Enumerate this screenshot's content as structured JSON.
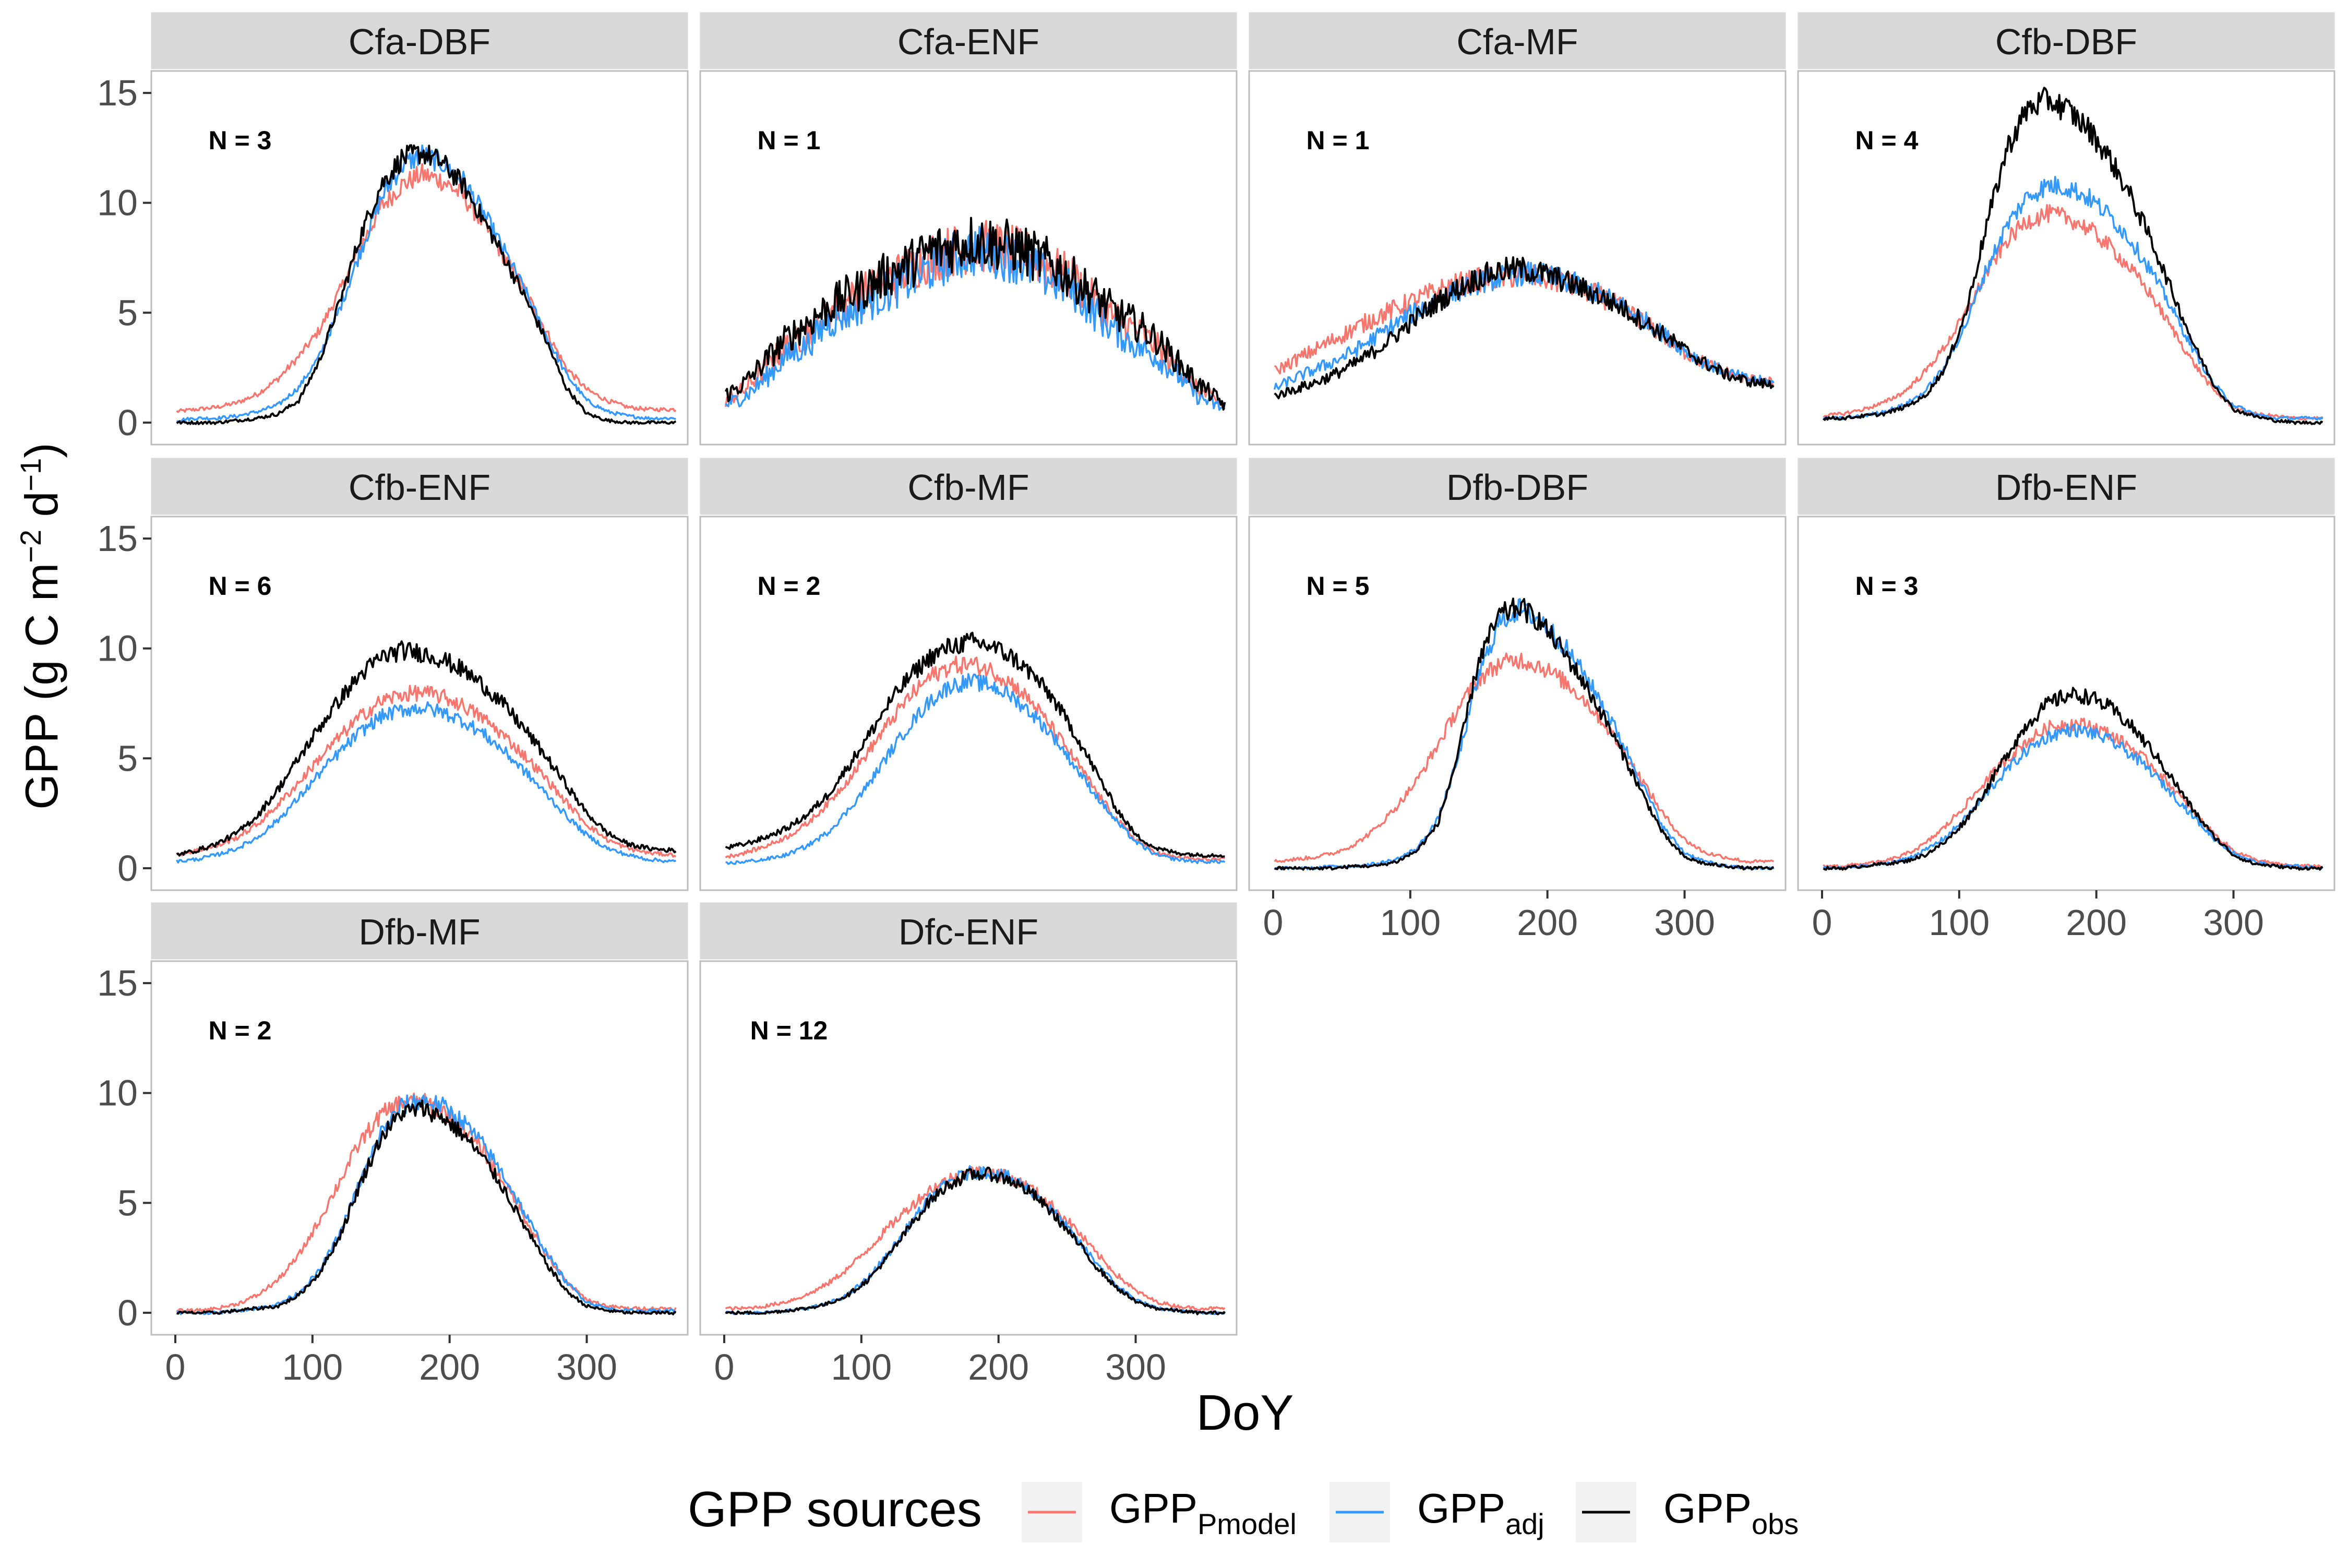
{
  "chart_data": {
    "type": "line",
    "title": "",
    "ylabel": "GPP (g C m⁻² d⁻¹)",
    "ylabel_parts": {
      "main": "GPP (g C m",
      "sup1": "−2",
      "mid": " d",
      "sup2": "−1",
      "end": ")"
    },
    "xlabel": "DoY",
    "xlim": [
      0,
      366
    ],
    "ylim": [
      -1,
      16
    ],
    "x_ticks": [
      0,
      100,
      200,
      300
    ],
    "y_ticks": [
      0,
      5,
      10,
      15
    ],
    "x_tick_labels": [
      "0",
      "100",
      "200",
      "300"
    ],
    "y_tick_labels": [
      "0",
      "5",
      "10",
      "15"
    ],
    "grid": false,
    "legend_position": "bottom",
    "legend": {
      "title": "GPP sources",
      "entries": [
        {
          "key": "pmodel",
          "base": "GPP",
          "sub": "Pmodel",
          "color": "#F8766D"
        },
        {
          "key": "adj",
          "base": "GPP",
          "sub": "adj",
          "color": "#3399FF"
        },
        {
          "key": "obs",
          "base": "GPP",
          "sub": "obs",
          "color": "#000000"
        }
      ]
    },
    "series_colors": {
      "pmodel": "#F8766D",
      "adj": "#3399FF",
      "obs": "#000000"
    },
    "x": [
      0,
      15,
      30,
      45,
      60,
      75,
      90,
      105,
      120,
      135,
      150,
      165,
      180,
      195,
      210,
      225,
      240,
      255,
      270,
      285,
      300,
      315,
      330,
      345,
      365
    ],
    "panels": [
      {
        "label": "Cfa-DBF",
        "n_label": "N = 3",
        "pmodel": [
          0.5,
          0.6,
          0.7,
          0.9,
          1.3,
          2.0,
          3.0,
          4.2,
          6.0,
          8.0,
          9.8,
          10.8,
          11.3,
          11.0,
          10.3,
          9.0,
          7.5,
          6.0,
          4.2,
          2.5,
          1.5,
          1.0,
          0.7,
          0.6,
          0.6
        ],
        "adj": [
          0.1,
          0.2,
          0.2,
          0.3,
          0.5,
          0.8,
          1.6,
          3.0,
          5.2,
          7.8,
          10.2,
          11.7,
          12.2,
          11.8,
          11.0,
          9.5,
          7.8,
          6.0,
          4.0,
          2.2,
          1.0,
          0.5,
          0.3,
          0.2,
          0.2
        ],
        "obs": [
          0.0,
          0.0,
          0.0,
          0.1,
          0.2,
          0.4,
          1.0,
          2.8,
          5.5,
          8.5,
          10.8,
          12.0,
          12.3,
          11.8,
          10.8,
          9.2,
          7.5,
          5.7,
          3.8,
          1.6,
          0.4,
          0.1,
          0.0,
          0.0,
          0.0
        ]
      },
      {
        "label": "Cfa-ENF",
        "n_label": "N = 1",
        "pmodel": [
          1.0,
          1.5,
          2.5,
          3.5,
          4.0,
          5.0,
          5.5,
          6.0,
          6.5,
          7.0,
          7.5,
          7.8,
          8.0,
          8.0,
          7.8,
          7.5,
          7.0,
          6.5,
          5.5,
          4.8,
          4.2,
          3.5,
          2.5,
          1.5,
          0.8
        ],
        "adj": [
          0.8,
          1.2,
          2.0,
          3.0,
          3.5,
          4.5,
          5.0,
          5.5,
          6.0,
          6.5,
          7.0,
          7.5,
          7.8,
          7.8,
          7.5,
          7.0,
          6.5,
          6.0,
          5.0,
          4.2,
          3.5,
          3.0,
          2.2,
          1.2,
          0.6
        ],
        "obs": [
          1.2,
          1.8,
          2.8,
          3.8,
          4.5,
          5.2,
          5.8,
          6.2,
          6.8,
          7.2,
          7.8,
          8.0,
          8.3,
          8.2,
          8.0,
          7.6,
          7.2,
          6.5,
          5.8,
          5.0,
          4.5,
          3.8,
          2.8,
          1.8,
          0.8
        ],
        "noise": 3.0
      },
      {
        "label": "Cfa-MF",
        "n_label": "N = 1",
        "pmodel": [
          2.3,
          2.8,
          3.3,
          3.8,
          4.3,
          4.8,
          5.2,
          5.6,
          6.0,
          6.3,
          6.5,
          6.6,
          6.7,
          6.6,
          6.4,
          6.1,
          5.7,
          5.2,
          4.6,
          3.9,
          3.2,
          2.7,
          2.3,
          2.0,
          1.8
        ],
        "adj": [
          1.5,
          2.0,
          2.4,
          2.8,
          3.3,
          3.9,
          4.5,
          5.1,
          5.6,
          6.0,
          6.4,
          6.6,
          6.8,
          6.7,
          6.5,
          6.2,
          5.8,
          5.3,
          4.7,
          4.0,
          3.3,
          2.7,
          2.3,
          2.0,
          1.8
        ],
        "obs": [
          1.2,
          1.5,
          1.8,
          2.2,
          2.7,
          3.3,
          4.0,
          4.8,
          5.5,
          6.1,
          6.6,
          6.9,
          7.0,
          6.8,
          6.5,
          6.1,
          5.7,
          5.2,
          4.6,
          4.0,
          3.3,
          2.7,
          2.2,
          1.9,
          1.7
        ],
        "noise": 1.6
      },
      {
        "label": "Cfb-DBF",
        "n_label": "N = 4",
        "pmodel": [
          0.3,
          0.4,
          0.6,
          0.9,
          1.4,
          2.3,
          3.5,
          5.0,
          6.8,
          8.3,
          9.2,
          9.5,
          9.3,
          8.8,
          8.0,
          7.0,
          5.8,
          4.3,
          2.8,
          1.5,
          0.7,
          0.4,
          0.3,
          0.2,
          0.2
        ],
        "adj": [
          0.2,
          0.2,
          0.3,
          0.5,
          0.8,
          1.4,
          2.6,
          4.5,
          7.0,
          9.0,
          10.3,
          10.8,
          10.7,
          10.2,
          9.4,
          8.3,
          6.9,
          5.2,
          3.4,
          1.8,
          0.8,
          0.4,
          0.2,
          0.2,
          0.2
        ],
        "obs": [
          0.2,
          0.2,
          0.3,
          0.4,
          0.7,
          1.2,
          2.5,
          5.0,
          9.0,
          12.5,
          14.3,
          14.7,
          14.2,
          13.3,
          12.0,
          10.3,
          8.3,
          6.0,
          3.7,
          1.8,
          0.6,
          0.3,
          0.1,
          0.0,
          0.0
        ]
      },
      {
        "label": "Cfb-ENF",
        "n_label": "N = 6",
        "pmodel": [
          0.6,
          0.8,
          1.0,
          1.4,
          2.0,
          2.9,
          3.9,
          5.0,
          6.0,
          6.9,
          7.6,
          7.9,
          8.0,
          7.8,
          7.4,
          6.8,
          6.0,
          5.1,
          4.1,
          3.0,
          2.0,
          1.3,
          0.9,
          0.7,
          0.6
        ],
        "adj": [
          0.3,
          0.4,
          0.6,
          0.9,
          1.4,
          2.2,
          3.2,
          4.3,
          5.3,
          6.2,
          6.9,
          7.2,
          7.3,
          7.1,
          6.7,
          6.1,
          5.3,
          4.4,
          3.4,
          2.4,
          1.5,
          0.9,
          0.6,
          0.4,
          0.3
        ],
        "obs": [
          0.6,
          0.8,
          1.1,
          1.6,
          2.4,
          3.6,
          5.0,
          6.4,
          7.7,
          8.8,
          9.6,
          9.9,
          9.8,
          9.5,
          9.0,
          8.3,
          7.4,
          6.3,
          5.1,
          3.8,
          2.5,
          1.6,
          1.1,
          0.9,
          0.8
        ]
      },
      {
        "label": "Cfb-MF",
        "n_label": "N = 2",
        "pmodel": [
          0.5,
          0.7,
          1.0,
          1.4,
          2.0,
          2.9,
          4.0,
          5.3,
          6.6,
          7.8,
          8.7,
          9.2,
          9.3,
          9.0,
          8.4,
          7.5,
          6.3,
          5.0,
          3.6,
          2.3,
          1.3,
          0.7,
          0.5,
          0.4,
          0.4
        ],
        "adj": [
          0.2,
          0.3,
          0.4,
          0.6,
          1.0,
          1.6,
          2.6,
          3.8,
          5.2,
          6.5,
          7.6,
          8.3,
          8.5,
          8.3,
          7.8,
          7.0,
          6.0,
          4.7,
          3.4,
          2.2,
          1.2,
          0.6,
          0.4,
          0.3,
          0.3
        ],
        "obs": [
          0.9,
          1.1,
          1.4,
          1.8,
          2.4,
          3.3,
          4.6,
          6.0,
          7.5,
          8.7,
          9.6,
          10.1,
          10.3,
          10.1,
          9.6,
          8.8,
          7.7,
          6.2,
          4.5,
          2.8,
          1.5,
          0.9,
          0.7,
          0.6,
          0.6
        ]
      },
      {
        "label": "Dfb-DBF",
        "n_label": "N = 5",
        "pmodel": [
          0.3,
          0.4,
          0.5,
          0.7,
          1.1,
          1.8,
          2.8,
          4.0,
          5.6,
          7.3,
          8.6,
          9.3,
          9.5,
          9.2,
          8.6,
          7.8,
          6.7,
          5.4,
          3.9,
          2.4,
          1.3,
          0.7,
          0.5,
          0.3,
          0.3
        ],
        "adj": [
          0.0,
          0.0,
          0.0,
          0.1,
          0.1,
          0.2,
          0.4,
          0.9,
          2.2,
          5.0,
          8.8,
          11.2,
          11.8,
          11.3,
          10.3,
          9.0,
          7.5,
          5.7,
          3.7,
          1.8,
          0.7,
          0.3,
          0.1,
          0.0,
          0.0
        ],
        "obs": [
          0.0,
          0.0,
          0.0,
          0.0,
          0.1,
          0.1,
          0.3,
          0.8,
          2.0,
          5.2,
          9.5,
          11.5,
          11.9,
          11.2,
          10.0,
          8.6,
          7.0,
          5.2,
          3.3,
          1.5,
          0.5,
          0.2,
          0.1,
          0.0,
          0.0
        ]
      },
      {
        "label": "Dfb-ENF",
        "n_label": "N = 3",
        "pmodel": [
          0.1,
          0.1,
          0.2,
          0.3,
          0.6,
          1.1,
          1.9,
          2.9,
          4.0,
          5.0,
          5.8,
          6.4,
          6.6,
          6.5,
          6.1,
          5.5,
          4.7,
          3.7,
          2.6,
          1.6,
          0.8,
          0.4,
          0.2,
          0.1,
          0.1
        ],
        "adj": [
          0.0,
          0.0,
          0.1,
          0.2,
          0.4,
          0.8,
          1.4,
          2.3,
          3.4,
          4.5,
          5.4,
          6.0,
          6.3,
          6.2,
          5.8,
          5.2,
          4.4,
          3.4,
          2.4,
          1.4,
          0.7,
          0.3,
          0.1,
          0.1,
          0.0
        ],
        "obs": [
          0.0,
          0.0,
          0.1,
          0.2,
          0.3,
          0.6,
          1.2,
          2.2,
          3.6,
          5.2,
          6.6,
          7.5,
          7.9,
          7.8,
          7.3,
          6.5,
          5.4,
          4.1,
          2.7,
          1.5,
          0.6,
          0.2,
          0.1,
          0.0,
          0.0
        ]
      },
      {
        "label": "Dfb-MF",
        "n_label": "N = 2",
        "pmodel": [
          0.1,
          0.1,
          0.2,
          0.4,
          0.8,
          1.5,
          2.6,
          4.2,
          6.0,
          7.8,
          9.0,
          9.6,
          9.6,
          9.2,
          8.4,
          7.3,
          5.9,
          4.3,
          2.7,
          1.4,
          0.6,
          0.3,
          0.2,
          0.2,
          0.2
        ],
        "adj": [
          0.0,
          0.0,
          0.0,
          0.1,
          0.2,
          0.4,
          0.9,
          1.9,
          3.6,
          6.0,
          8.2,
          9.4,
          9.7,
          9.4,
          8.7,
          7.6,
          6.2,
          4.5,
          2.8,
          1.4,
          0.5,
          0.2,
          0.1,
          0.1,
          0.1
        ],
        "obs": [
          0.0,
          0.0,
          0.0,
          0.1,
          0.2,
          0.3,
          0.8,
          1.8,
          3.5,
          5.9,
          8.0,
          9.1,
          9.3,
          8.9,
          8.1,
          7.0,
          5.6,
          3.9,
          2.3,
          1.0,
          0.3,
          0.1,
          0.0,
          0.0,
          0.0
        ]
      },
      {
        "label": "Dfc-ENF",
        "n_label": "N = 12",
        "pmodel": [
          0.2,
          0.2,
          0.3,
          0.5,
          0.8,
          1.3,
          2.0,
          2.9,
          3.9,
          4.8,
          5.6,
          6.1,
          6.4,
          6.4,
          6.1,
          5.6,
          4.8,
          3.9,
          2.8,
          1.8,
          1.0,
          0.5,
          0.3,
          0.2,
          0.2
        ],
        "adj": [
          0.0,
          0.0,
          0.0,
          0.1,
          0.2,
          0.4,
          0.8,
          1.6,
          2.7,
          4.0,
          5.2,
          6.0,
          6.4,
          6.4,
          6.1,
          5.5,
          4.6,
          3.5,
          2.4,
          1.3,
          0.6,
          0.2,
          0.1,
          0.0,
          0.0
        ],
        "obs": [
          0.0,
          0.0,
          0.0,
          0.1,
          0.2,
          0.4,
          0.8,
          1.5,
          2.6,
          3.9,
          5.1,
          5.9,
          6.3,
          6.3,
          6.0,
          5.4,
          4.5,
          3.4,
          2.2,
          1.2,
          0.5,
          0.2,
          0.1,
          0.0,
          0.0
        ]
      }
    ]
  }
}
